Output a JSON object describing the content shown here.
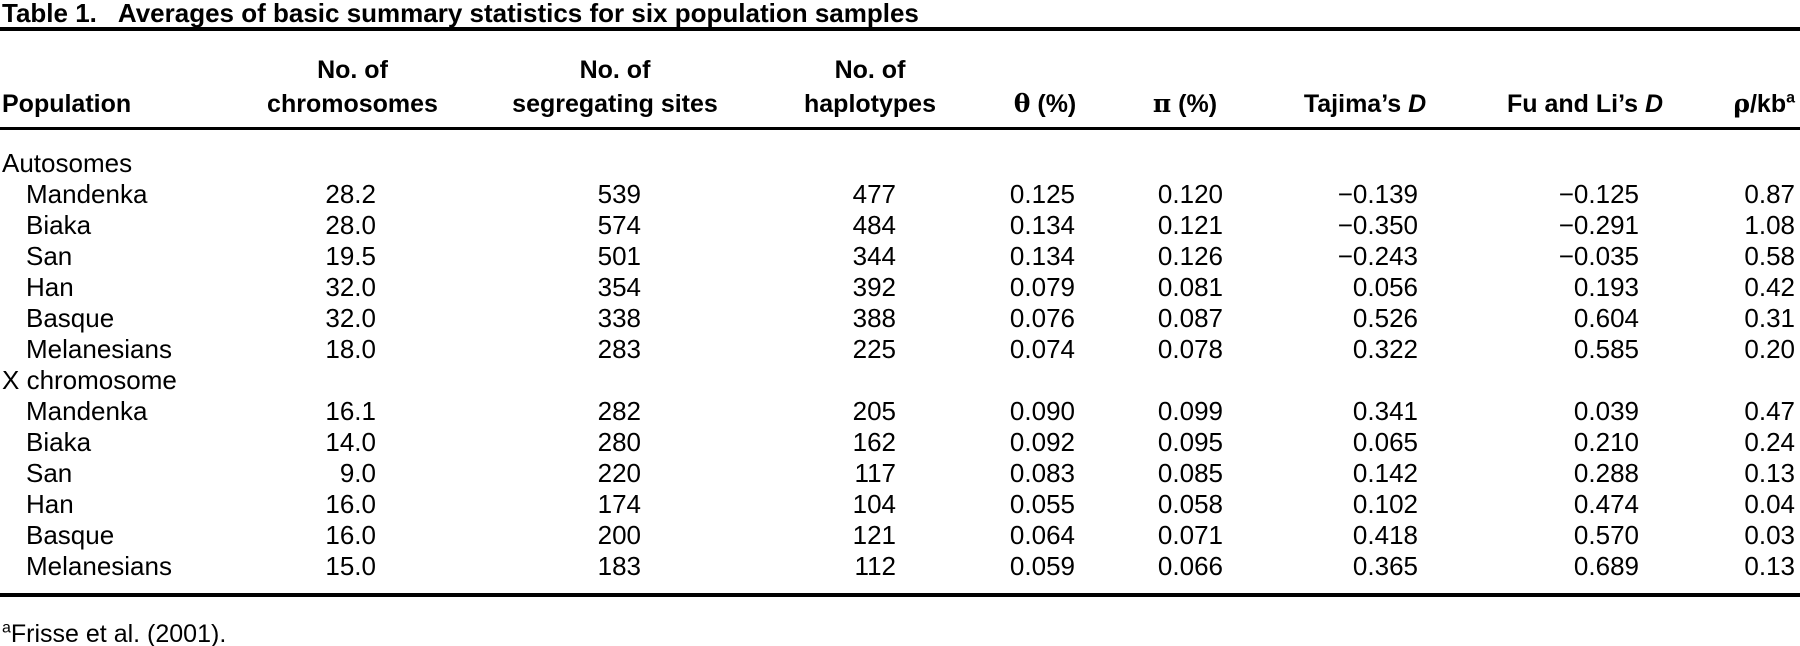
{
  "colors": {
    "text": "#000000",
    "background": "#ffffff",
    "rule": "#000000"
  },
  "caption": {
    "label": "Table 1.",
    "text": "Averages of basic summary statistics for six population samples"
  },
  "table": {
    "columns": [
      {
        "key": "population",
        "line1": [],
        "line2": [
          {
            "t": "Population"
          }
        ]
      },
      {
        "key": "chromosomes",
        "line1": [
          {
            "t": "No. of"
          }
        ],
        "line2": [
          {
            "t": "chromosomes"
          }
        ]
      },
      {
        "key": "segregating-sites",
        "line1": [
          {
            "t": "No. of"
          }
        ],
        "line2": [
          {
            "t": "segregating sites"
          }
        ]
      },
      {
        "key": "haplotypes",
        "line1": [
          {
            "t": "No. of"
          }
        ],
        "line2": [
          {
            "t": "haplotypes"
          }
        ]
      },
      {
        "key": "theta-pct",
        "line1": [],
        "line2": [
          {
            "t": "θ",
            "s": "greek"
          },
          {
            "t": " (%)"
          }
        ]
      },
      {
        "key": "pi-pct",
        "line1": [],
        "line2": [
          {
            "t": "π",
            "s": "greek"
          },
          {
            "t": " (%)"
          }
        ]
      },
      {
        "key": "tajimas-d",
        "line1": [],
        "line2": [
          {
            "t": "Tajima’s "
          },
          {
            "t": "D",
            "s": "i"
          }
        ]
      },
      {
        "key": "fu-and-lis-d",
        "line1": [],
        "line2": [
          {
            "t": "Fu and Li’s "
          },
          {
            "t": "D",
            "s": "i"
          }
        ]
      },
      {
        "key": "rho-per-kb",
        "line1": [],
        "line2": [
          {
            "t": "ρ",
            "s": "greek"
          },
          {
            "t": "/kb"
          },
          {
            "t": "a",
            "s": "sup"
          }
        ]
      }
    ],
    "sections": [
      {
        "label": "Autosomes",
        "rows": [
          {
            "population": "Mandenka",
            "values": [
              "28.2",
              "539",
              "477",
              "0.125",
              "0.120",
              "−0.139",
              "−0.125",
              "0.87"
            ]
          },
          {
            "population": "Biaka",
            "values": [
              "28.0",
              "574",
              "484",
              "0.134",
              "0.121",
              "−0.350",
              "−0.291",
              "1.08"
            ]
          },
          {
            "population": "San",
            "values": [
              "19.5",
              "501",
              "344",
              "0.134",
              "0.126",
              "−0.243",
              "−0.035",
              "0.58"
            ]
          },
          {
            "population": "Han",
            "values": [
              "32.0",
              "354",
              "392",
              "0.079",
              "0.081",
              "0.056",
              "0.193",
              "0.42"
            ]
          },
          {
            "population": "Basque",
            "values": [
              "32.0",
              "338",
              "388",
              "0.076",
              "0.087",
              "0.526",
              "0.604",
              "0.31"
            ]
          },
          {
            "population": "Melanesians",
            "values": [
              "18.0",
              "283",
              "225",
              "0.074",
              "0.078",
              "0.322",
              "0.585",
              "0.20"
            ]
          }
        ]
      },
      {
        "label": "X chromosome",
        "rows": [
          {
            "population": "Mandenka",
            "values": [
              "16.1",
              "282",
              "205",
              "0.090",
              "0.099",
              "0.341",
              "0.039",
              "0.47"
            ]
          },
          {
            "population": "Biaka",
            "values": [
              "14.0",
              "280",
              "162",
              "0.092",
              "0.095",
              "0.065",
              "0.210",
              "0.24"
            ]
          },
          {
            "population": "San",
            "values": [
              "9.0",
              "220",
              "117",
              "0.083",
              "0.085",
              "0.142",
              "0.288",
              "0.13"
            ]
          },
          {
            "population": "Han",
            "values": [
              "16.0",
              "174",
              "104",
              "0.055",
              "0.058",
              "0.102",
              "0.474",
              "0.04"
            ]
          },
          {
            "population": "Basque",
            "values": [
              "16.0",
              "200",
              "121",
              "0.064",
              "0.071",
              "0.418",
              "0.570",
              "0.03"
            ]
          },
          {
            "population": "Melanesians",
            "values": [
              "15.0",
              "183",
              "112",
              "0.059",
              "0.066",
              "0.365",
              "0.689",
              "0.13"
            ]
          }
        ]
      }
    ]
  },
  "footnote": {
    "marker": "a",
    "text": "Frisse et al. (2001)."
  }
}
